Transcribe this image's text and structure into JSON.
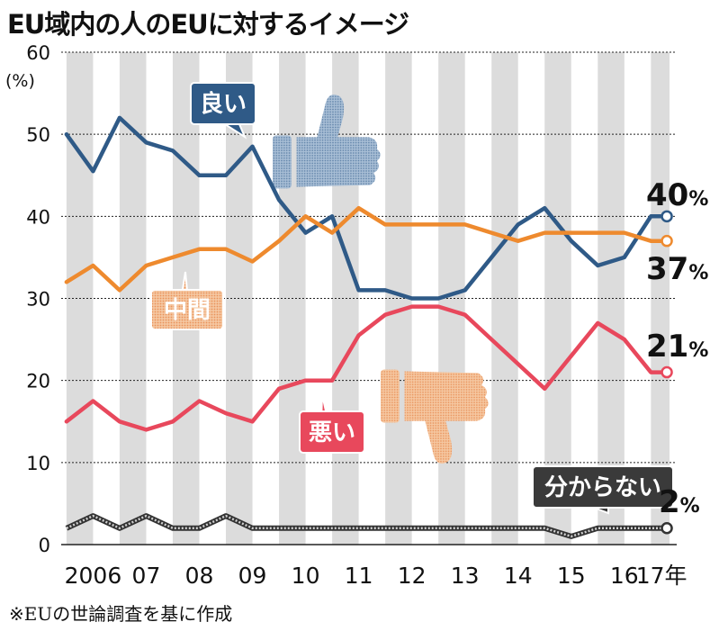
{
  "title": "EU域内の人のEUに対するイメージ",
  "note": "※EUの世論調査を基に作成",
  "colors": {
    "good": "#2f5a87",
    "neutral": "#ee8a2e",
    "bad": "#e8485c",
    "unknown": "#333333",
    "stripe": "#dcdcdc"
  },
  "chart_data": {
    "type": "line",
    "ylabel": "(%)",
    "ylim": [
      0,
      60
    ],
    "yticks": [
      0,
      10,
      20,
      30,
      40,
      50,
      60
    ],
    "xlim": [
      2005.9,
      2017.35
    ],
    "xticks": [
      {
        "label": "2006",
        "x": 2006.5
      },
      {
        "label": "07",
        "x": 2007.5
      },
      {
        "label": "08",
        "x": 2008.5
      },
      {
        "label": "09",
        "x": 2009.5
      },
      {
        "label": "10",
        "x": 2010.5
      },
      {
        "label": "11",
        "x": 2011.5
      },
      {
        "label": "12",
        "x": 2012.5
      },
      {
        "label": "13",
        "x": 2013.5
      },
      {
        "label": "14",
        "x": 2014.5
      },
      {
        "label": "15",
        "x": 2015.5
      },
      {
        "label": "16",
        "x": 2016.5
      },
      {
        "label": "17年",
        "x": 2017.2
      }
    ],
    "grid": true,
    "series": [
      {
        "name": "良い",
        "key": "good",
        "end_label": "40%",
        "x": [
          2006.0,
          2006.5,
          2007.0,
          2007.5,
          2008.0,
          2008.5,
          2009.0,
          2009.5,
          2010.0,
          2010.5,
          2011.0,
          2011.5,
          2012.0,
          2012.5,
          2013.0,
          2013.5,
          2014.0,
          2014.5,
          2015.0,
          2015.5,
          2016.0,
          2016.5,
          2017.0,
          2017.3
        ],
        "y": [
          50,
          45.5,
          52,
          49,
          48,
          45,
          45,
          48.5,
          42,
          38,
          40,
          31,
          31,
          30,
          30,
          31,
          35,
          39,
          41,
          37,
          34,
          35,
          40,
          40
        ]
      },
      {
        "name": "中間",
        "key": "neutral",
        "end_label": "37%",
        "x": [
          2006.0,
          2006.5,
          2007.0,
          2007.5,
          2008.0,
          2008.5,
          2009.0,
          2009.5,
          2010.0,
          2010.5,
          2011.0,
          2011.5,
          2012.0,
          2012.5,
          2013.0,
          2013.5,
          2014.0,
          2014.5,
          2015.0,
          2015.5,
          2016.0,
          2016.5,
          2017.0,
          2017.3
        ],
        "y": [
          32,
          34,
          31,
          34,
          35,
          36,
          36,
          34.5,
          37,
          40,
          38,
          41,
          39,
          39,
          39,
          39,
          38,
          37,
          38,
          38,
          38,
          38,
          37,
          37
        ]
      },
      {
        "name": "悪い",
        "key": "bad",
        "end_label": "21%",
        "x": [
          2006.0,
          2006.5,
          2007.0,
          2007.5,
          2008.0,
          2008.5,
          2009.0,
          2009.5,
          2010.0,
          2010.5,
          2011.0,
          2011.5,
          2012.0,
          2012.5,
          2013.0,
          2013.5,
          2014.0,
          2014.5,
          2015.0,
          2015.5,
          2016.0,
          2016.5,
          2017.0,
          2017.3
        ],
        "y": [
          15,
          17.5,
          15,
          14,
          15,
          17.5,
          16,
          15,
          19,
          20,
          20,
          25.5,
          28,
          29,
          29,
          28,
          25,
          22,
          19,
          23,
          27,
          25,
          21,
          21
        ]
      },
      {
        "name": "分からない",
        "key": "unknown",
        "end_label": "2%",
        "x": [
          2006.0,
          2006.5,
          2007.0,
          2007.5,
          2008.0,
          2008.5,
          2009.0,
          2009.5,
          2010.0,
          2010.5,
          2011.0,
          2011.5,
          2012.0,
          2012.5,
          2013.0,
          2013.5,
          2014.0,
          2014.5,
          2015.0,
          2015.5,
          2016.0,
          2016.5,
          2017.0,
          2017.3
        ],
        "y": [
          2,
          3.5,
          2,
          3.5,
          2,
          2,
          3.5,
          2,
          2,
          2,
          2,
          2,
          2,
          2,
          2,
          2,
          2,
          2,
          2,
          1,
          2,
          2,
          2,
          2
        ]
      }
    ]
  }
}
